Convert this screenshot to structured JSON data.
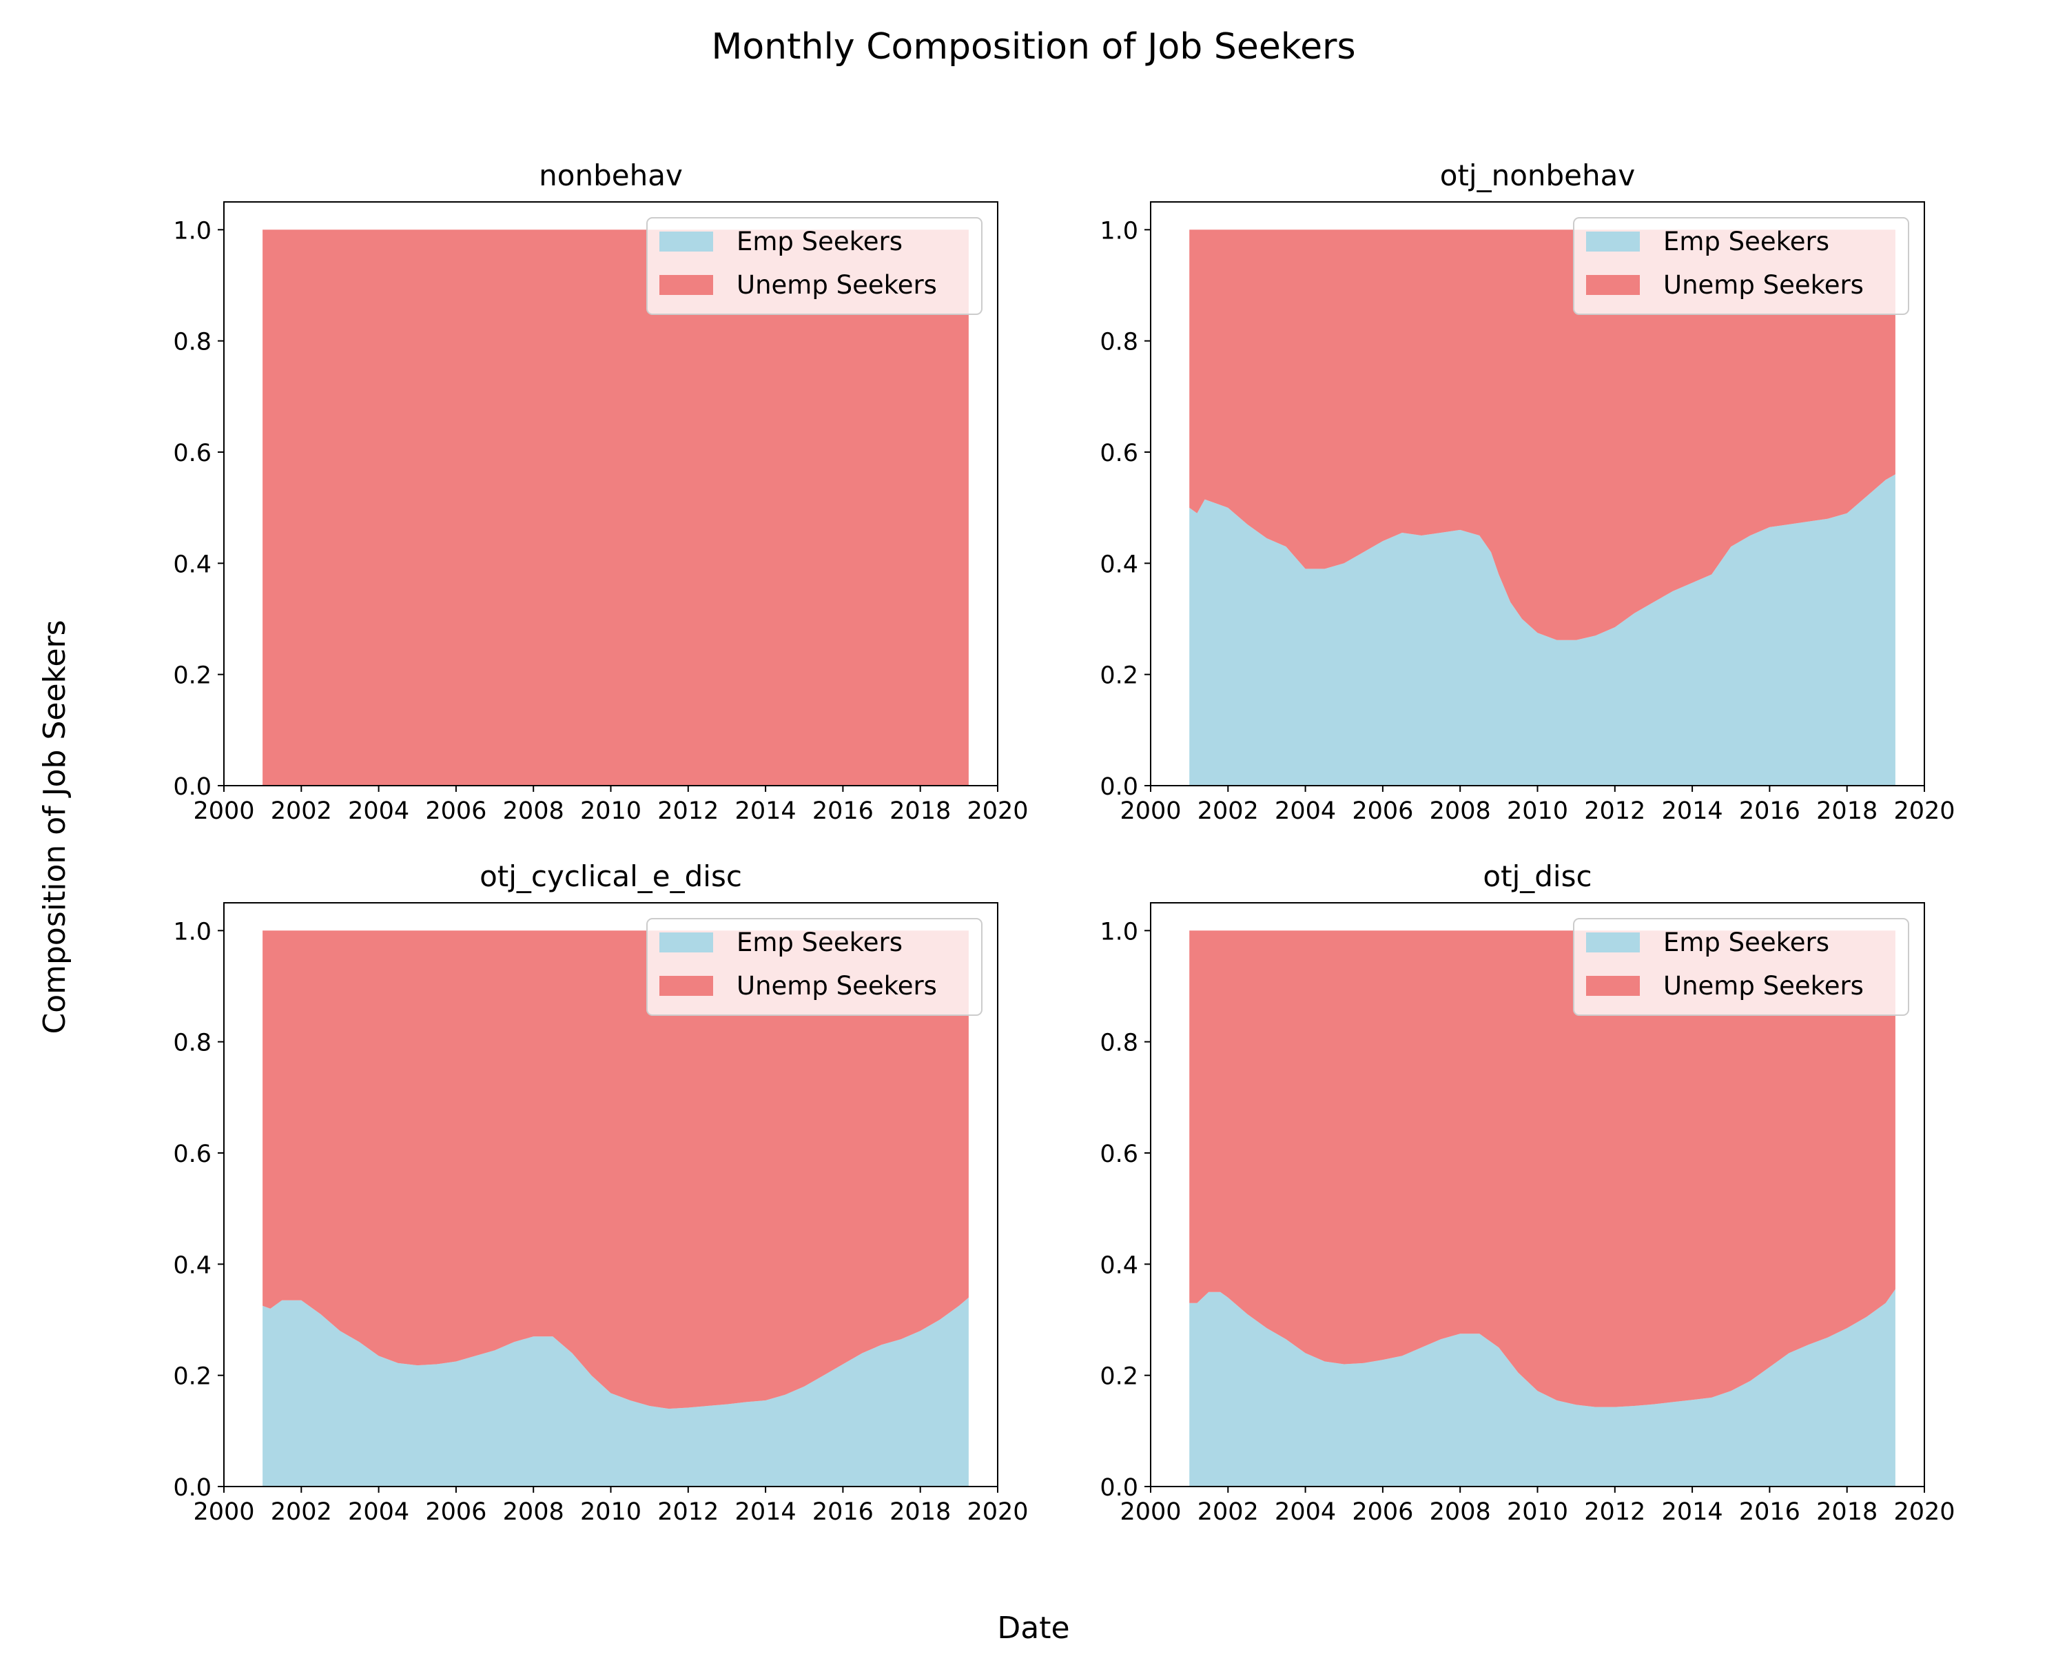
{
  "figure": {
    "title": "Monthly Composition of Job Seekers",
    "xlabel": "Date",
    "ylabel": "Composition of Job Seekers"
  },
  "colors": {
    "emp": "#add8e6",
    "unemp": "#f08080"
  },
  "chart_data": [
    {
      "type": "area",
      "stacked": true,
      "title": "nonbehav",
      "x_ticks": [
        "2000",
        "2002",
        "2004",
        "2006",
        "2008",
        "2010",
        "2012",
        "2014",
        "2016",
        "2018",
        "2020"
      ],
      "y_ticks": [
        "0.0",
        "0.2",
        "0.4",
        "0.6",
        "0.8",
        "1.0"
      ],
      "xlim": [
        2000,
        2020
      ],
      "ylim": [
        0,
        1.05
      ],
      "legend_position": "top-right",
      "x": [
        2001.0,
        2002.0,
        2003.0,
        2004.0,
        2005.0,
        2006.0,
        2007.0,
        2008.0,
        2009.0,
        2010.0,
        2011.0,
        2012.0,
        2013.0,
        2014.0,
        2015.0,
        2016.0,
        2017.0,
        2018.0,
        2019.0,
        2019.25
      ],
      "series": [
        {
          "name": "Emp Seekers",
          "values": [
            0,
            0,
            0,
            0,
            0,
            0,
            0,
            0,
            0,
            0,
            0,
            0,
            0,
            0,
            0,
            0,
            0,
            0,
            0,
            0
          ]
        },
        {
          "name": "Unemp Seekers",
          "values": [
            1,
            1,
            1,
            1,
            1,
            1,
            1,
            1,
            1,
            1,
            1,
            1,
            1,
            1,
            1,
            1,
            1,
            1,
            1,
            1
          ]
        }
      ]
    },
    {
      "type": "area",
      "stacked": true,
      "title": "otj_nonbehav",
      "x_ticks": [
        "2000",
        "2002",
        "2004",
        "2006",
        "2008",
        "2010",
        "2012",
        "2014",
        "2016",
        "2018",
        "2020"
      ],
      "y_ticks": [
        "0.0",
        "0.2",
        "0.4",
        "0.6",
        "0.8",
        "1.0"
      ],
      "xlim": [
        2000,
        2020
      ],
      "ylim": [
        0,
        1.05
      ],
      "legend_position": "top-right",
      "x": [
        2001.0,
        2001.2,
        2001.4,
        2001.6,
        2002.0,
        2002.5,
        2003.0,
        2003.5,
        2004.0,
        2004.5,
        2005.0,
        2005.5,
        2006.0,
        2006.5,
        2007.0,
        2007.5,
        2008.0,
        2008.5,
        2008.8,
        2009.0,
        2009.3,
        2009.6,
        2010.0,
        2010.5,
        2011.0,
        2011.5,
        2012.0,
        2012.5,
        2013.0,
        2013.5,
        2014.0,
        2014.5,
        2015.0,
        2015.5,
        2016.0,
        2016.5,
        2017.0,
        2017.5,
        2018.0,
        2018.5,
        2019.0,
        2019.25
      ],
      "series": [
        {
          "name": "Emp Seekers",
          "values": [
            0.5,
            0.49,
            0.515,
            0.51,
            0.5,
            0.47,
            0.445,
            0.43,
            0.39,
            0.39,
            0.4,
            0.42,
            0.44,
            0.455,
            0.45,
            0.455,
            0.46,
            0.45,
            0.42,
            0.38,
            0.33,
            0.3,
            0.275,
            0.262,
            0.262,
            0.27,
            0.285,
            0.31,
            0.33,
            0.35,
            0.365,
            0.38,
            0.43,
            0.45,
            0.465,
            0.47,
            0.475,
            0.48,
            0.49,
            0.52,
            0.55,
            0.56
          ]
        },
        {
          "name": "Unemp Seekers",
          "values": [
            0.5,
            0.51,
            0.485,
            0.49,
            0.5,
            0.53,
            0.555,
            0.57,
            0.61,
            0.61,
            0.6,
            0.58,
            0.56,
            0.545,
            0.55,
            0.545,
            0.54,
            0.55,
            0.58,
            0.62,
            0.67,
            0.7,
            0.725,
            0.738,
            0.738,
            0.73,
            0.715,
            0.69,
            0.67,
            0.65,
            0.635,
            0.62,
            0.57,
            0.55,
            0.535,
            0.53,
            0.525,
            0.52,
            0.51,
            0.48,
            0.45,
            0.44
          ]
        }
      ]
    },
    {
      "type": "area",
      "stacked": true,
      "title": "otj_cyclical_e_disc",
      "x_ticks": [
        "2000",
        "2002",
        "2004",
        "2006",
        "2008",
        "2010",
        "2012",
        "2014",
        "2016",
        "2018",
        "2020"
      ],
      "y_ticks": [
        "0.0",
        "0.2",
        "0.4",
        "0.6",
        "0.8",
        "1.0"
      ],
      "xlim": [
        2000,
        2020
      ],
      "ylim": [
        0,
        1.05
      ],
      "legend_position": "top-right",
      "x": [
        2001.0,
        2001.2,
        2001.5,
        2002.0,
        2002.5,
        2003.0,
        2003.5,
        2004.0,
        2004.5,
        2005.0,
        2005.5,
        2006.0,
        2006.5,
        2007.0,
        2007.5,
        2008.0,
        2008.5,
        2009.0,
        2009.5,
        2010.0,
        2010.5,
        2011.0,
        2011.5,
        2012.0,
        2012.5,
        2013.0,
        2013.5,
        2014.0,
        2014.5,
        2015.0,
        2015.5,
        2016.0,
        2016.5,
        2017.0,
        2017.5,
        2018.0,
        2018.5,
        2019.0,
        2019.25
      ],
      "series": [
        {
          "name": "Emp Seekers",
          "values": [
            0.325,
            0.32,
            0.335,
            0.335,
            0.31,
            0.28,
            0.26,
            0.235,
            0.222,
            0.218,
            0.22,
            0.225,
            0.235,
            0.245,
            0.26,
            0.27,
            0.27,
            0.24,
            0.2,
            0.168,
            0.155,
            0.145,
            0.14,
            0.142,
            0.145,
            0.148,
            0.152,
            0.155,
            0.165,
            0.18,
            0.2,
            0.22,
            0.24,
            0.255,
            0.265,
            0.28,
            0.3,
            0.325,
            0.34
          ]
        },
        {
          "name": "Unemp Seekers",
          "values": [
            0.675,
            0.68,
            0.665,
            0.665,
            0.69,
            0.72,
            0.74,
            0.765,
            0.778,
            0.782,
            0.78,
            0.775,
            0.765,
            0.755,
            0.74,
            0.73,
            0.73,
            0.76,
            0.8,
            0.832,
            0.845,
            0.855,
            0.86,
            0.858,
            0.855,
            0.852,
            0.848,
            0.845,
            0.835,
            0.82,
            0.8,
            0.78,
            0.76,
            0.745,
            0.735,
            0.72,
            0.7,
            0.675,
            0.66
          ]
        }
      ]
    },
    {
      "type": "area",
      "stacked": true,
      "title": "otj_disc",
      "x_ticks": [
        "2000",
        "2002",
        "2004",
        "2006",
        "2008",
        "2010",
        "2012",
        "2014",
        "2016",
        "2018",
        "2020"
      ],
      "y_ticks": [
        "0.0",
        "0.2",
        "0.4",
        "0.6",
        "0.8",
        "1.0"
      ],
      "xlim": [
        2000,
        2020
      ],
      "ylim": [
        0,
        1.05
      ],
      "legend_position": "top-right",
      "x": [
        2001.0,
        2001.2,
        2001.5,
        2001.8,
        2002.0,
        2002.5,
        2003.0,
        2003.5,
        2004.0,
        2004.5,
        2005.0,
        2005.5,
        2006.0,
        2006.5,
        2007.0,
        2007.5,
        2008.0,
        2008.5,
        2009.0,
        2009.5,
        2010.0,
        2010.5,
        2011.0,
        2011.5,
        2012.0,
        2012.5,
        2013.0,
        2013.5,
        2014.0,
        2014.5,
        2015.0,
        2015.5,
        2016.0,
        2016.5,
        2017.0,
        2017.5,
        2018.0,
        2018.5,
        2019.0,
        2019.25
      ],
      "series": [
        {
          "name": "Emp Seekers",
          "values": [
            0.33,
            0.33,
            0.35,
            0.35,
            0.34,
            0.31,
            0.285,
            0.265,
            0.24,
            0.225,
            0.22,
            0.222,
            0.228,
            0.235,
            0.25,
            0.265,
            0.275,
            0.275,
            0.25,
            0.205,
            0.172,
            0.155,
            0.147,
            0.143,
            0.143,
            0.145,
            0.148,
            0.152,
            0.156,
            0.16,
            0.172,
            0.19,
            0.215,
            0.24,
            0.255,
            0.268,
            0.285,
            0.305,
            0.33,
            0.355
          ]
        },
        {
          "name": "Unemp Seekers",
          "values": [
            0.67,
            0.67,
            0.65,
            0.65,
            0.66,
            0.69,
            0.715,
            0.735,
            0.76,
            0.775,
            0.78,
            0.778,
            0.772,
            0.765,
            0.75,
            0.735,
            0.725,
            0.725,
            0.75,
            0.795,
            0.828,
            0.845,
            0.853,
            0.857,
            0.857,
            0.855,
            0.852,
            0.848,
            0.844,
            0.84,
            0.828,
            0.81,
            0.785,
            0.76,
            0.745,
            0.732,
            0.715,
            0.695,
            0.67,
            0.645
          ]
        }
      ]
    }
  ]
}
